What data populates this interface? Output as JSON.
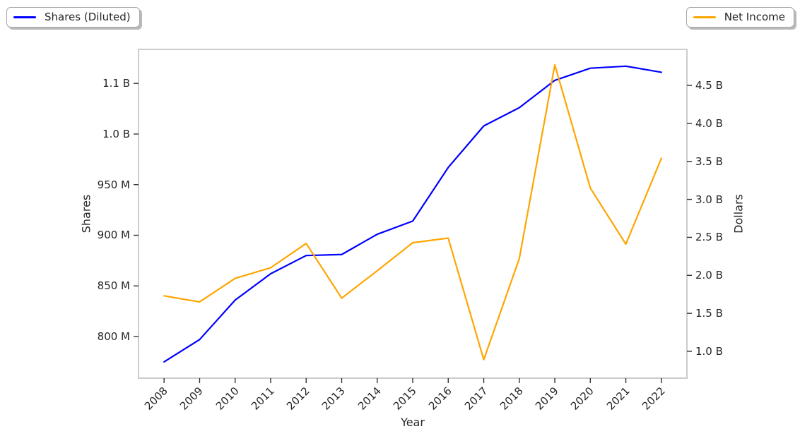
{
  "figure": {
    "background": "#ffffff",
    "text_color": "#262626",
    "spine_color": "#cccccc",
    "tick_mark_color": "#333333"
  },
  "legends": [
    {
      "label": "Shares (Diluted)",
      "color": "#0000ff",
      "position": "top-left"
    },
    {
      "label": "Net Income",
      "color": "#ffa500",
      "position": "top-right"
    }
  ],
  "chart_data": {
    "type": "line",
    "title": "",
    "x": {
      "label": "Year",
      "categories": [
        "2008",
        "2009",
        "2010",
        "2011",
        "2012",
        "2013",
        "2014",
        "2015",
        "2016",
        "2017",
        "2018",
        "2019",
        "2020",
        "2021",
        "2022"
      ],
      "tick_rotation_deg": 45
    },
    "left_axis": {
      "label": "Shares",
      "unit": "shares (millions)",
      "range": [
        759.6,
        1082.9
      ],
      "ticks": [
        {
          "value": 800,
          "label": "800 M"
        },
        {
          "value": 850,
          "label": "850 M"
        },
        {
          "value": 900,
          "label": "900 M"
        },
        {
          "value": 950,
          "label": "950 M"
        },
        {
          "value": 1000,
          "label": "1.0 B"
        },
        {
          "value": 1050,
          "label": "1.1 B"
        }
      ]
    },
    "right_axis": {
      "label": "Dollars",
      "unit": "dollars (billions)",
      "range": [
        0.656,
        4.965
      ],
      "ticks": [
        {
          "value": 1.0,
          "label": "1.0 B"
        },
        {
          "value": 1.5,
          "label": "1.5 B"
        },
        {
          "value": 2.0,
          "label": "2.0 B"
        },
        {
          "value": 2.5,
          "label": "2.5 B"
        },
        {
          "value": 3.0,
          "label": "3.0 B"
        },
        {
          "value": 3.5,
          "label": "3.5 B"
        },
        {
          "value": 4.0,
          "label": "4.0 B"
        },
        {
          "value": 4.5,
          "label": "4.5 B"
        }
      ]
    },
    "series": [
      {
        "name": "Shares (Diluted)",
        "axis": "left",
        "color": "#0000ff",
        "unit": "millions of shares",
        "values": [
          775,
          797,
          836,
          862,
          880,
          881,
          901,
          914,
          967,
          1008,
          1026,
          1053,
          1065,
          1067,
          1061
        ]
      },
      {
        "name": "Net Income",
        "axis": "right",
        "color": "#ffa500",
        "unit": "billions of dollars",
        "values": [
          1.73,
          1.65,
          1.96,
          2.1,
          2.42,
          1.7,
          2.06,
          2.43,
          2.49,
          0.89,
          2.22,
          4.77,
          3.15,
          2.41,
          3.54
        ]
      }
    ],
    "grid": false,
    "legend_position": "outside-top"
  }
}
